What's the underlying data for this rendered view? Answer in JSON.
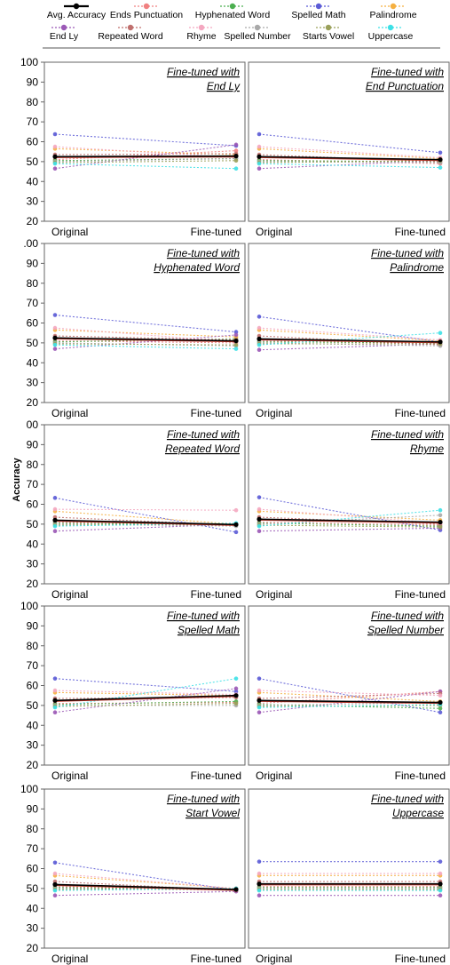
{
  "legend": {
    "row1": [
      {
        "name": "Avg. Accuracy",
        "color": "#000000",
        "kind": "avg"
      },
      {
        "name": "Ends Punctuation",
        "color": "#f08080"
      },
      {
        "name": "Hyphenated Word",
        "color": "#4caf50"
      },
      {
        "name": "Spelled Math",
        "color": "#5b5bd6"
      },
      {
        "name": "Palindrome",
        "color": "#f5b041"
      }
    ],
    "row2": [
      {
        "name": "End Ly",
        "color": "#9b59b6"
      },
      {
        "name": "Repeated Word",
        "color": "#c0706e"
      },
      {
        "name": "Rhyme",
        "color": "#f4a7c0"
      },
      {
        "name": "Spelled Number",
        "color": "#a9a9a9"
      },
      {
        "name": "Starts Vowel",
        "color": "#9aa05a"
      },
      {
        "name": "Uppercase",
        "color": "#3de0e6"
      }
    ]
  },
  "y_axis_label": "Accuracy",
  "chart_data": [
    {
      "type": "line",
      "title_line1": "Fine-tuned with",
      "title_line2": "End Ly",
      "categories": [
        "Original",
        "Fine-tuned"
      ],
      "ylim": [
        20,
        100
      ],
      "yticks": [
        "100",
        "90",
        "80",
        "70",
        "60",
        "50",
        "40",
        "30",
        "20"
      ],
      "series": [
        {
          "name": "Avg. Accuracy",
          "values": [
            52.5,
            52.8
          ]
        },
        {
          "name": "Ends Punctuation",
          "values": [
            51.0,
            55.5
          ]
        },
        {
          "name": "Hyphenated Word",
          "values": [
            50.5,
            51.5
          ]
        },
        {
          "name": "Spelled Math",
          "values": [
            63.8,
            58.0
          ]
        },
        {
          "name": "Palindrome",
          "values": [
            56.5,
            53.5
          ]
        },
        {
          "name": "End Ly",
          "values": [
            46.5,
            58.5
          ]
        },
        {
          "name": "Repeated Word",
          "values": [
            53.5,
            54.0
          ]
        },
        {
          "name": "Rhyme",
          "values": [
            57.5,
            52.0
          ]
        },
        {
          "name": "Spelled Number",
          "values": [
            50.0,
            51.5
          ]
        },
        {
          "name": "Starts Vowel",
          "values": [
            49.5,
            50.5
          ]
        },
        {
          "name": "Uppercase",
          "values": [
            49.0,
            46.5
          ]
        }
      ]
    },
    {
      "type": "line",
      "title_line1": "Fine-tuned with",
      "title_line2": "End Punctuation",
      "categories": [
        "Original",
        "Fine-tuned"
      ],
      "ylim": [
        20,
        100
      ],
      "yticks": [],
      "series": [
        {
          "name": "Avg. Accuracy",
          "values": [
            52.5,
            51.0
          ]
        },
        {
          "name": "Ends Punctuation",
          "values": [
            51.0,
            49.0
          ]
        },
        {
          "name": "Hyphenated Word",
          "values": [
            50.5,
            50.0
          ]
        },
        {
          "name": "Spelled Math",
          "values": [
            63.8,
            54.5
          ]
        },
        {
          "name": "Palindrome",
          "values": [
            56.5,
            51.5
          ]
        },
        {
          "name": "End Ly",
          "values": [
            46.5,
            50.5
          ]
        },
        {
          "name": "Repeated Word",
          "values": [
            53.5,
            50.0
          ]
        },
        {
          "name": "Rhyme",
          "values": [
            57.5,
            52.0
          ]
        },
        {
          "name": "Spelled Number",
          "values": [
            50.0,
            49.5
          ]
        },
        {
          "name": "Starts Vowel",
          "values": [
            49.5,
            50.5
          ]
        },
        {
          "name": "Uppercase",
          "values": [
            49.0,
            47.0
          ]
        }
      ]
    },
    {
      "type": "line",
      "title_line1": "Fine-tuned with",
      "title_line2": "Hyphenated Word",
      "categories": [
        "Original",
        "Fine-tuned"
      ],
      "ylim": [
        20,
        100
      ],
      "yticks": [
        ".00",
        "90",
        "80",
        "70",
        "60",
        "50",
        "40",
        "30",
        "20"
      ],
      "series": [
        {
          "name": "Avg. Accuracy",
          "values": [
            52.5,
            51.0
          ]
        },
        {
          "name": "Ends Punctuation",
          "values": [
            51.0,
            50.0
          ]
        },
        {
          "name": "Hyphenated Word",
          "values": [
            50.5,
            52.0
          ]
        },
        {
          "name": "Spelled Math",
          "values": [
            64.0,
            55.5
          ]
        },
        {
          "name": "Palindrome",
          "values": [
            56.5,
            53.0
          ]
        },
        {
          "name": "End Ly",
          "values": [
            47.0,
            54.0
          ]
        },
        {
          "name": "Repeated Word",
          "values": [
            53.5,
            51.5
          ]
        },
        {
          "name": "Rhyme",
          "values": [
            57.5,
            50.5
          ]
        },
        {
          "name": "Spelled Number",
          "values": [
            50.0,
            48.5
          ]
        },
        {
          "name": "Starts Vowel",
          "values": [
            49.5,
            49.0
          ]
        },
        {
          "name": "Uppercase",
          "values": [
            49.0,
            47.0
          ]
        }
      ]
    },
    {
      "type": "line",
      "title_line1": "Fine-tuned with",
      "title_line2": "Palindrome",
      "categories": [
        "Original",
        "Fine-tuned"
      ],
      "ylim": [
        20,
        100
      ],
      "yticks": [],
      "series": [
        {
          "name": "Avg. Accuracy",
          "values": [
            52.0,
            50.5
          ]
        },
        {
          "name": "Ends Punctuation",
          "values": [
            51.0,
            49.5
          ]
        },
        {
          "name": "Hyphenated Word",
          "values": [
            50.5,
            50.0
          ]
        },
        {
          "name": "Spelled Math",
          "values": [
            63.2,
            50.5
          ]
        },
        {
          "name": "Palindrome",
          "values": [
            56.5,
            51.0
          ]
        },
        {
          "name": "End Ly",
          "values": [
            46.5,
            49.5
          ]
        },
        {
          "name": "Repeated Word",
          "values": [
            53.5,
            49.0
          ]
        },
        {
          "name": "Rhyme",
          "values": [
            57.5,
            51.5
          ]
        },
        {
          "name": "Spelled Number",
          "values": [
            50.0,
            48.5
          ]
        },
        {
          "name": "Starts Vowel",
          "values": [
            49.5,
            49.5
          ]
        },
        {
          "name": "Uppercase",
          "values": [
            49.0,
            55.0
          ]
        }
      ]
    },
    {
      "type": "line",
      "title_line1": "Fine-tuned with",
      "title_line2": "Repeated Word",
      "categories": [
        "Original",
        "Fine-tuned"
      ],
      "ylim": [
        20,
        100
      ],
      "yticks": [
        "00",
        "90",
        "80",
        "70",
        "60",
        "50",
        "40",
        "30",
        "20"
      ],
      "series": [
        {
          "name": "Avg. Accuracy",
          "values": [
            52.0,
            49.8
          ]
        },
        {
          "name": "Ends Punctuation",
          "values": [
            51.0,
            50.0
          ]
        },
        {
          "name": "Hyphenated Word",
          "values": [
            50.5,
            49.5
          ]
        },
        {
          "name": "Spelled Math",
          "values": [
            63.2,
            46.0
          ]
        },
        {
          "name": "Palindrome",
          "values": [
            56.5,
            50.0
          ]
        },
        {
          "name": "End Ly",
          "values": [
            46.5,
            50.0
          ]
        },
        {
          "name": "Repeated Word",
          "values": [
            53.5,
            49.5
          ]
        },
        {
          "name": "Rhyme",
          "values": [
            57.5,
            57.0
          ]
        },
        {
          "name": "Spelled Number",
          "values": [
            50.0,
            49.0
          ]
        },
        {
          "name": "Starts Vowel",
          "values": [
            49.5,
            50.0
          ]
        },
        {
          "name": "Uppercase",
          "values": [
            49.0,
            50.5
          ]
        }
      ]
    },
    {
      "type": "line",
      "title_line1": "Fine-tuned with",
      "title_line2": "Rhyme",
      "categories": [
        "Original",
        "Fine-tuned"
      ],
      "ylim": [
        20,
        100
      ],
      "yticks": [],
      "series": [
        {
          "name": "Avg. Accuracy",
          "values": [
            52.5,
            51.0
          ]
        },
        {
          "name": "Ends Punctuation",
          "values": [
            51.0,
            49.5
          ]
        },
        {
          "name": "Hyphenated Word",
          "values": [
            50.5,
            49.0
          ]
        },
        {
          "name": "Spelled Math",
          "values": [
            63.5,
            47.0
          ]
        },
        {
          "name": "Palindrome",
          "values": [
            56.5,
            52.0
          ]
        },
        {
          "name": "End Ly",
          "values": [
            46.5,
            48.0
          ]
        },
        {
          "name": "Repeated Word",
          "values": [
            53.5,
            50.0
          ]
        },
        {
          "name": "Rhyme",
          "values": [
            57.5,
            50.5
          ]
        },
        {
          "name": "Spelled Number",
          "values": [
            50.0,
            54.5
          ]
        },
        {
          "name": "Starts Vowel",
          "values": [
            49.5,
            48.5
          ]
        },
        {
          "name": "Uppercase",
          "values": [
            49.0,
            57.0
          ]
        }
      ]
    },
    {
      "type": "line",
      "title_line1": "Fine-tuned with",
      "title_line2": "Spelled Math",
      "categories": [
        "Original",
        "Fine-tuned"
      ],
      "ylim": [
        20,
        100
      ],
      "yticks": [
        "100",
        "90",
        "80",
        "70",
        "60",
        "50",
        "40",
        "30",
        "20"
      ],
      "series": [
        {
          "name": "Avg. Accuracy",
          "values": [
            52.5,
            55.0
          ]
        },
        {
          "name": "Ends Punctuation",
          "values": [
            51.0,
            51.5
          ]
        },
        {
          "name": "Hyphenated Word",
          "values": [
            50.5,
            52.0
          ]
        },
        {
          "name": "Spelled Math",
          "values": [
            63.5,
            57.0
          ]
        },
        {
          "name": "Palindrome",
          "values": [
            56.5,
            55.0
          ]
        },
        {
          "name": "End Ly",
          "values": [
            46.5,
            58.5
          ]
        },
        {
          "name": "Repeated Word",
          "values": [
            53.5,
            54.0
          ]
        },
        {
          "name": "Rhyme",
          "values": [
            57.5,
            55.5
          ]
        },
        {
          "name": "Spelled Number",
          "values": [
            50.0,
            50.0
          ]
        },
        {
          "name": "Starts Vowel",
          "values": [
            49.5,
            51.0
          ]
        },
        {
          "name": "Uppercase",
          "values": [
            49.0,
            63.5
          ]
        }
      ]
    },
    {
      "type": "line",
      "title_line1": "Fine-tuned with",
      "title_line2": "Spelled Number",
      "categories": [
        "Original",
        "Fine-tuned"
      ],
      "ylim": [
        20,
        100
      ],
      "yticks": [],
      "series": [
        {
          "name": "Avg. Accuracy",
          "values": [
            52.5,
            51.5
          ]
        },
        {
          "name": "Ends Punctuation",
          "values": [
            51.0,
            57.0
          ]
        },
        {
          "name": "Hyphenated Word",
          "values": [
            50.5,
            48.5
          ]
        },
        {
          "name": "Spelled Math",
          "values": [
            63.5,
            46.5
          ]
        },
        {
          "name": "Palindrome",
          "values": [
            56.5,
            52.0
          ]
        },
        {
          "name": "End Ly",
          "values": [
            46.5,
            57.0
          ]
        },
        {
          "name": "Repeated Word",
          "values": [
            53.5,
            56.0
          ]
        },
        {
          "name": "Rhyme",
          "values": [
            57.5,
            55.0
          ]
        },
        {
          "name": "Spelled Number",
          "values": [
            50.0,
            51.5
          ]
        },
        {
          "name": "Starts Vowel",
          "values": [
            49.5,
            50.0
          ]
        },
        {
          "name": "Uppercase",
          "values": [
            49.0,
            50.5
          ]
        }
      ]
    },
    {
      "type": "line",
      "title_line1": "Fine-tuned with",
      "title_line2": "Start Vowel",
      "categories": [
        "Original",
        "Fine-tuned"
      ],
      "ylim": [
        20,
        100
      ],
      "yticks": [
        "100",
        "90",
        "80",
        "70",
        "60",
        "50",
        "40",
        "30",
        "20"
      ],
      "series": [
        {
          "name": "Avg. Accuracy",
          "values": [
            52.0,
            49.5
          ]
        },
        {
          "name": "Ends Punctuation",
          "values": [
            51.0,
            49.0
          ]
        },
        {
          "name": "Hyphenated Word",
          "values": [
            50.5,
            49.5
          ]
        },
        {
          "name": "Spelled Math",
          "values": [
            63.0,
            49.0
          ]
        },
        {
          "name": "Palindrome",
          "values": [
            56.5,
            50.0
          ]
        },
        {
          "name": "End Ly",
          "values": [
            46.5,
            48.5
          ]
        },
        {
          "name": "Repeated Word",
          "values": [
            53.5,
            49.0
          ]
        },
        {
          "name": "Rhyme",
          "values": [
            57.5,
            50.0
          ]
        },
        {
          "name": "Spelled Number",
          "values": [
            50.0,
            49.5
          ]
        },
        {
          "name": "Starts Vowel",
          "values": [
            49.5,
            49.5
          ]
        },
        {
          "name": "Uppercase",
          "values": [
            49.0,
            50.0
          ]
        }
      ]
    },
    {
      "type": "line",
      "title_line1": "Fine-tuned with",
      "title_line2": "Uppercase",
      "categories": [
        "Original",
        "Fine-tuned"
      ],
      "ylim": [
        20,
        100
      ],
      "yticks": [],
      "series": [
        {
          "name": "Avg. Accuracy",
          "values": [
            52.3,
            52.3
          ]
        },
        {
          "name": "Ends Punctuation",
          "values": [
            51.0,
            51.0
          ]
        },
        {
          "name": "Hyphenated Word",
          "values": [
            50.5,
            50.5
          ]
        },
        {
          "name": "Spelled Math",
          "values": [
            63.5,
            63.5
          ]
        },
        {
          "name": "Palindrome",
          "values": [
            56.5,
            56.5
          ]
        },
        {
          "name": "End Ly",
          "values": [
            46.5,
            46.5
          ]
        },
        {
          "name": "Repeated Word",
          "values": [
            53.5,
            53.5
          ]
        },
        {
          "name": "Rhyme",
          "values": [
            57.5,
            57.5
          ]
        },
        {
          "name": "Spelled Number",
          "values": [
            50.0,
            50.0
          ]
        },
        {
          "name": "Starts Vowel",
          "values": [
            49.5,
            49.5
          ]
        },
        {
          "name": "Uppercase",
          "values": [
            49.0,
            49.0
          ]
        }
      ]
    }
  ]
}
